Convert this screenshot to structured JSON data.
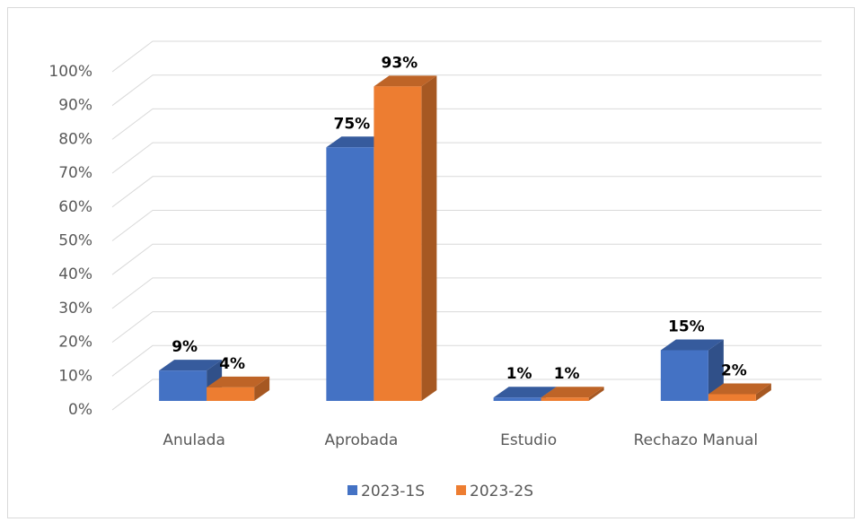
{
  "chart_data": {
    "type": "bar3d",
    "categories": [
      "Anulada",
      "Aprobada",
      "Estudio",
      "Rechazo Manual"
    ],
    "series": [
      {
        "name": "2023-1S",
        "color": "#4472c4",
        "values": [
          9,
          75,
          1,
          15
        ],
        "value_labels": [
          "9%",
          "75%",
          "1%",
          "15%"
        ]
      },
      {
        "name": "2023-2S",
        "color": "#ed7d31",
        "values": [
          4,
          93,
          1,
          2
        ],
        "value_labels": [
          "4%",
          "93%",
          "1%",
          "2%"
        ]
      }
    ],
    "ylim": [
      0,
      100
    ],
    "yticks": [
      {
        "value": 0,
        "label": "0%"
      },
      {
        "value": 10,
        "label": "10%"
      },
      {
        "value": 20,
        "label": "20%"
      },
      {
        "value": 30,
        "label": "30%"
      },
      {
        "value": 40,
        "label": "40%"
      },
      {
        "value": 50,
        "label": "50%"
      },
      {
        "value": 60,
        "label": "60%"
      },
      {
        "value": 70,
        "label": "70%"
      },
      {
        "value": 80,
        "label": "80%"
      },
      {
        "value": 90,
        "label": "90%"
      },
      {
        "value": 100,
        "label": "100%"
      }
    ],
    "grid": true,
    "legend": "bottom"
  }
}
